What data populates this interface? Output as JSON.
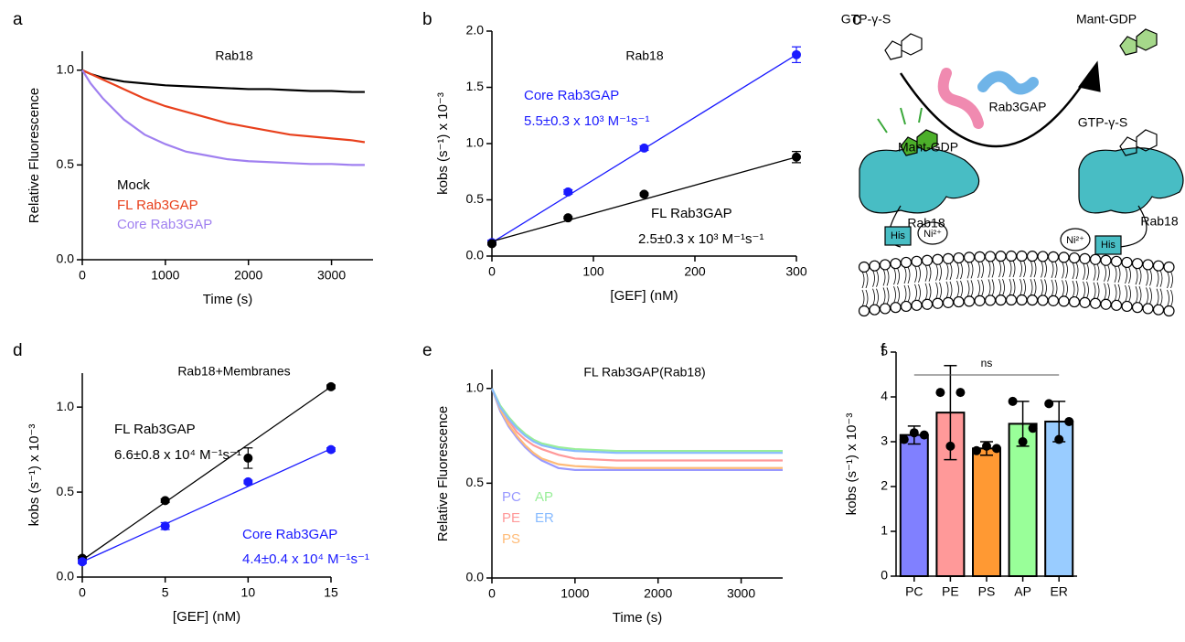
{
  "chart_data": [
    {
      "panel": "a",
      "type": "line",
      "title": "Rab18",
      "xlabel": "Time (s)",
      "ylabel": "Relative Fluorescence",
      "xlim": [
        0,
        3500
      ],
      "ylim": [
        0,
        1.1
      ],
      "xticks": [
        0,
        1000,
        2000,
        3000
      ],
      "yticks": [
        {
          "value": 0,
          "label": "0.0"
        },
        {
          "value": 0.5,
          "label": "0.5"
        },
        {
          "value": 1,
          "label": "1.0"
        }
      ],
      "x": [
        0,
        100,
        250,
        500,
        750,
        1000,
        1250,
        1500,
        1750,
        2000,
        2250,
        2500,
        2750,
        3000,
        3250,
        3400
      ],
      "series": [
        {
          "name": "Mock",
          "color": "#000000",
          "values": [
            1.0,
            0.98,
            0.96,
            0.94,
            0.93,
            0.92,
            0.915,
            0.91,
            0.905,
            0.9,
            0.9,
            0.895,
            0.89,
            0.89,
            0.885,
            0.885
          ]
        },
        {
          "name": "FL Rab3GAP",
          "color": "#e8401c",
          "values": [
            1.0,
            0.98,
            0.95,
            0.9,
            0.85,
            0.81,
            0.78,
            0.75,
            0.72,
            0.7,
            0.68,
            0.66,
            0.65,
            0.64,
            0.63,
            0.62
          ]
        },
        {
          "name": "Core Rab3GAP",
          "color": "#a080f0",
          "values": [
            1.0,
            0.93,
            0.85,
            0.74,
            0.66,
            0.61,
            0.57,
            0.55,
            0.53,
            0.52,
            0.515,
            0.51,
            0.505,
            0.505,
            0.5,
            0.5
          ]
        }
      ]
    },
    {
      "panel": "b",
      "type": "scatter",
      "title": "Rab18",
      "xlabel": "[GEF] (nM)",
      "ylabel": "kobs (s⁻¹) x 10⁻³",
      "xlim": [
        0,
        300
      ],
      "ylim": [
        0,
        2
      ],
      "xticks": [
        0,
        100,
        200,
        300
      ],
      "yticks": [
        {
          "value": 0,
          "label": "0.0"
        },
        {
          "value": 0.5,
          "label": "0.5"
        },
        {
          "value": 1,
          "label": "1.0"
        },
        {
          "value": 1.5,
          "label": "1.5"
        },
        {
          "value": 2,
          "label": "2.0"
        }
      ],
      "series": [
        {
          "name": "Core Rab3GAP",
          "rate": "5.5±0.3 x 10³ M⁻¹s⁻¹",
          "color": "#1a1aff",
          "x": [
            0,
            75,
            150,
            300
          ],
          "values": [
            0.12,
            0.57,
            0.96,
            1.79
          ],
          "errors": [
            0.02,
            0.02,
            0.02,
            0.07
          ],
          "fit": {
            "x": [
              0,
              300
            ],
            "values": [
              0.12,
              1.79
            ]
          }
        },
        {
          "name": "FL Rab3GAP",
          "rate": "2.5±0.3 x 10³ M⁻¹s⁻¹",
          "color": "#000000",
          "x": [
            0,
            75,
            150,
            300
          ],
          "values": [
            0.11,
            0.34,
            0.55,
            0.88
          ],
          "errors": [
            0.01,
            0.01,
            0.01,
            0.05
          ],
          "fit": {
            "x": [
              0,
              300
            ],
            "values": [
              0.13,
              0.88
            ]
          }
        }
      ]
    },
    {
      "panel": "d",
      "type": "scatter",
      "title": "Rab18+Membranes",
      "xlabel": "[GEF] (nM)",
      "ylabel": "kobs (s⁻¹) x 10⁻³",
      "xlim": [
        0,
        15
      ],
      "ylim": [
        0,
        1.2
      ],
      "xticks": [
        0,
        5,
        10,
        15
      ],
      "yticks": [
        {
          "value": 0,
          "label": "0.0"
        },
        {
          "value": 0.5,
          "label": "0.5"
        },
        {
          "value": 1,
          "label": "1.0"
        }
      ],
      "series": [
        {
          "name": "FL Rab3GAP",
          "rate": "6.6±0.8 x 10⁴ M⁻¹s⁻¹",
          "color": "#000000",
          "x": [
            0,
            5,
            10,
            15
          ],
          "values": [
            0.11,
            0.45,
            0.7,
            1.12
          ],
          "errors": [
            0.01,
            0.01,
            0.06,
            0.01
          ],
          "fit": {
            "x": [
              0,
              15
            ],
            "values": [
              0.1,
              1.12
            ]
          }
        },
        {
          "name": "Core Rab3GAP",
          "rate": "4.4±0.4 x 10⁴ M⁻¹s⁻¹",
          "color": "#1a1aff",
          "x": [
            0,
            5,
            10,
            15
          ],
          "values": [
            0.09,
            0.3,
            0.56,
            0.75
          ],
          "errors": [
            0.01,
            0.02,
            0.01,
            0.01
          ],
          "fit": {
            "x": [
              0,
              15
            ],
            "values": [
              0.09,
              0.755
            ]
          }
        }
      ]
    },
    {
      "panel": "e",
      "type": "line",
      "title": "FL Rab3GAP(Rab18)",
      "xlabel": "Time (s)",
      "ylabel": "Relative Fluorescence",
      "xlim": [
        0,
        3500
      ],
      "ylim": [
        0,
        1.1
      ],
      "xticks": [
        0,
        1000,
        2000,
        3000
      ],
      "yticks": [
        {
          "value": 0,
          "label": "0.0"
        },
        {
          "value": 0.5,
          "label": "0.5"
        },
        {
          "value": 1,
          "label": "1.0"
        }
      ],
      "x": [
        0,
        100,
        200,
        300,
        400,
        500,
        600,
        800,
        1000,
        1500,
        2000,
        2500,
        3000,
        3500
      ],
      "series": [
        {
          "name": "PC",
          "color": "#9999ff",
          "values": [
            1.0,
            0.88,
            0.8,
            0.74,
            0.69,
            0.65,
            0.62,
            0.58,
            0.57,
            0.57,
            0.57,
            0.57,
            0.57,
            0.57
          ]
        },
        {
          "name": "PE",
          "color": "#ff9999",
          "values": [
            1.0,
            0.9,
            0.83,
            0.77,
            0.73,
            0.7,
            0.68,
            0.65,
            0.63,
            0.62,
            0.62,
            0.62,
            0.62,
            0.62
          ]
        },
        {
          "name": "PS",
          "color": "#ffbb77",
          "values": [
            1.0,
            0.89,
            0.81,
            0.75,
            0.7,
            0.66,
            0.63,
            0.6,
            0.59,
            0.58,
            0.58,
            0.58,
            0.58,
            0.58
          ]
        },
        {
          "name": "AP",
          "color": "#99ee99",
          "values": [
            1.0,
            0.91,
            0.85,
            0.8,
            0.76,
            0.73,
            0.71,
            0.69,
            0.68,
            0.67,
            0.67,
            0.67,
            0.67,
            0.67
          ]
        },
        {
          "name": "ER",
          "color": "#88bbff",
          "values": [
            1.0,
            0.9,
            0.84,
            0.79,
            0.75,
            0.72,
            0.7,
            0.68,
            0.67,
            0.66,
            0.66,
            0.66,
            0.66,
            0.66
          ]
        }
      ]
    },
    {
      "panel": "f",
      "type": "bar",
      "ylabel": "kobs (s⁻¹) x 10⁻³",
      "annotation": "ns",
      "ylim": [
        0,
        5
      ],
      "yticks": [
        0,
        1,
        2,
        3,
        4,
        5
      ],
      "categories": [
        "PC",
        "PE",
        "PS",
        "AP",
        "ER"
      ],
      "values": [
        3.15,
        3.65,
        2.85,
        3.4,
        3.45
      ],
      "errors": [
        0.2,
        1.05,
        0.15,
        0.5,
        0.45
      ],
      "colors": [
        "#8080ff",
        "#ff9999",
        "#ff9933",
        "#99ff99",
        "#99ccff"
      ],
      "points": [
        [
          3.05,
          3.2,
          3.15
        ],
        [
          4.1,
          2.9,
          4.1
        ],
        [
          2.8,
          2.9,
          2.85
        ],
        [
          3.9,
          3.0,
          3.3
        ],
        [
          3.85,
          3.05,
          3.45
        ]
      ]
    }
  ],
  "diagram": {
    "panel": "c",
    "labels": [
      "GTP-γ-S",
      "Mant-GDP",
      "Rab3GAP",
      "GTP-γ-S",
      "Mant-GDP",
      "Rab18",
      "Rab18",
      "His",
      "Ni²⁺",
      "Ni²⁺",
      "His"
    ]
  }
}
